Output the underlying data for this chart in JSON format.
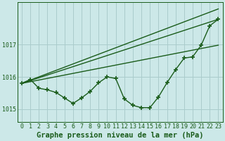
{
  "bg_color": "#cce8e8",
  "line_color": "#1a5c1a",
  "grid_color": "#aacccc",
  "title": "Graphe pression niveau de la mer (hPa)",
  "xlim": [
    -0.5,
    23.5
  ],
  "ylim": [
    1014.6,
    1018.3
  ],
  "yticks": [
    1015,
    1016,
    1017
  ],
  "xticks": [
    0,
    1,
    2,
    3,
    4,
    5,
    6,
    7,
    8,
    9,
    10,
    11,
    12,
    13,
    14,
    15,
    16,
    17,
    18,
    19,
    20,
    21,
    22,
    23
  ],
  "series_main": {
    "x": [
      0,
      1,
      2,
      3,
      4,
      5,
      6,
      7,
      8,
      9,
      10,
      11,
      12,
      13,
      14,
      15,
      16,
      17,
      18,
      19,
      20,
      21,
      22,
      23
    ],
    "y": [
      1015.8,
      1015.92,
      1015.65,
      1015.6,
      1015.52,
      1015.35,
      1015.18,
      1015.35,
      1015.55,
      1015.82,
      1016.0,
      1015.95,
      1015.32,
      1015.12,
      1015.05,
      1015.05,
      1015.38,
      1015.82,
      1016.22,
      1016.58,
      1016.62,
      1016.98,
      1017.58,
      1017.78
    ]
  },
  "series_lines": [
    {
      "x": [
        0,
        23
      ],
      "y": [
        1015.8,
        1018.1
      ]
    },
    {
      "x": [
        0,
        23
      ],
      "y": [
        1015.8,
        1017.78
      ]
    },
    {
      "x": [
        0,
        23
      ],
      "y": [
        1015.8,
        1016.98
      ]
    }
  ],
  "marker": "+",
  "markersize": 4,
  "markeredgewidth": 1.2,
  "linewidth": 1.0,
  "title_fontsize": 7.5,
  "tick_fontsize": 6.0,
  "title_fontweight": "bold"
}
